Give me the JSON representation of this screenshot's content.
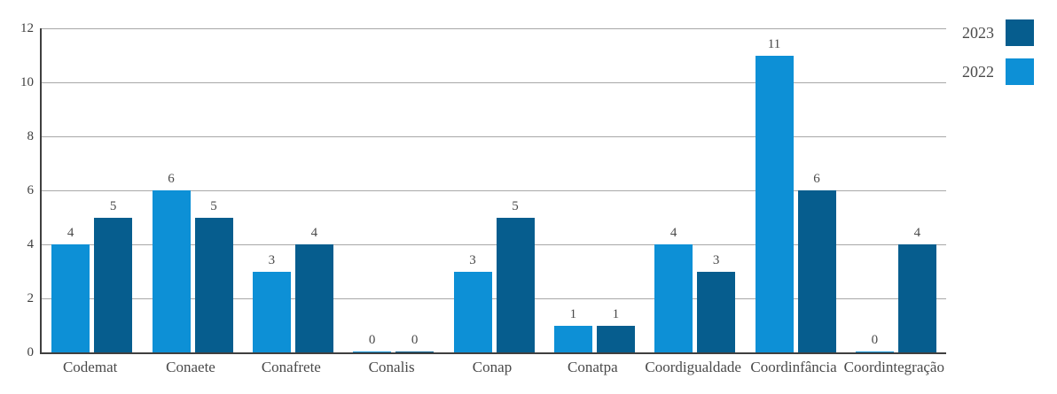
{
  "chart_data": {
    "type": "bar",
    "title": "",
    "xlabel": "",
    "ylabel": "",
    "categories": [
      "Codemat",
      "Conaete",
      "Conafrete",
      "Conalis",
      "Conap",
      "Conatpa",
      "Coordigualdade",
      "Coordinfância",
      "Coordintegração"
    ],
    "series": [
      {
        "name": "2022",
        "color": "#0d90d6",
        "values": [
          4,
          6,
          3,
          0,
          3,
          1,
          4,
          11,
          0
        ]
      },
      {
        "name": "2023",
        "color": "#065d8e",
        "values": [
          5,
          5,
          4,
          0,
          5,
          1,
          3,
          6,
          4
        ]
      }
    ],
    "legend": [
      {
        "label": "2023",
        "color": "#065d8e"
      },
      {
        "label": "2022",
        "color": "#0d90d6"
      }
    ],
    "legend_position": "top-right",
    "ylim": [
      0,
      12
    ],
    "yticks": [
      0,
      2,
      4,
      6,
      8,
      10,
      12
    ],
    "grid": true,
    "show_value_labels": true
  },
  "style": {
    "gridline_color": "#a8a8a8",
    "axis_color": "#3f3f3f",
    "tick_label_color": "#3f3f3f",
    "value_label_color": "#4a4a4a",
    "category_label_color": "#4a4a4a"
  }
}
